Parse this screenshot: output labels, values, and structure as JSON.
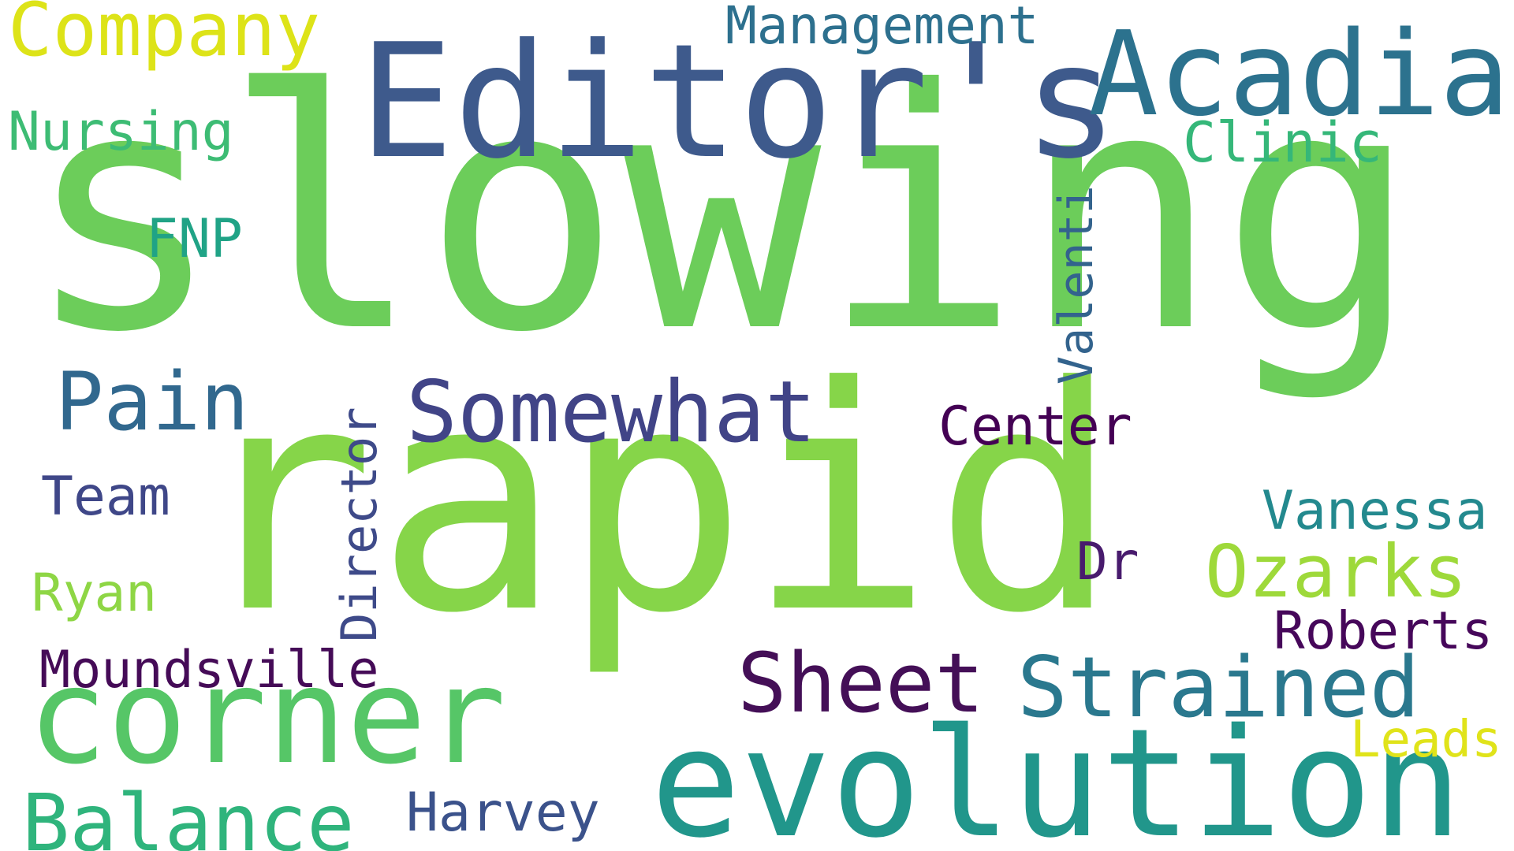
{
  "colors": {
    "background": "#ffffff"
  },
  "words": {
    "slowing": {
      "text": "slowing",
      "color": "#6ccd5a"
    },
    "rapid": {
      "text": "rapid",
      "color": "#86d549"
    },
    "editors": {
      "text": "Editor's",
      "color": "#3e5a8c"
    },
    "evolution": {
      "text": "evolution",
      "color": "#21968b"
    },
    "corner": {
      "text": "corner",
      "color": "#56c667"
    },
    "acadia": {
      "text": "Acadia",
      "color": "#2c728e"
    },
    "somewhat": {
      "text": "Somewhat",
      "color": "#414487"
    },
    "strained": {
      "text": "Strained",
      "color": "#2a788e"
    },
    "pain": {
      "text": "Pain",
      "color": "#31688e"
    },
    "sheet": {
      "text": "Sheet",
      "color": "#440f57"
    },
    "balance": {
      "text": "Balance",
      "color": "#2fb47c"
    },
    "company": {
      "text": "Company",
      "color": "#dde318"
    },
    "ozarks": {
      "text": "Ozarks",
      "color": "#9ed93a"
    },
    "management": {
      "text": "Management",
      "color": "#2d708e"
    },
    "nursing": {
      "text": "Nursing",
      "color": "#3dbc74"
    },
    "clinic": {
      "text": "Clinic",
      "color": "#35b779"
    },
    "center": {
      "text": "Center",
      "color": "#440154"
    },
    "vanessa": {
      "text": "Vanessa",
      "color": "#23898e"
    },
    "roberts": {
      "text": "Roberts",
      "color": "#46075a"
    },
    "moundsville": {
      "text": "Moundsville",
      "color": "#450b57"
    },
    "harvey": {
      "text": "Harvey",
      "color": "#3b528b"
    },
    "leads": {
      "text": "Leads",
      "color": "#e0e31a"
    },
    "team": {
      "text": "Team",
      "color": "#3f4788"
    },
    "ryan": {
      "text": "Ryan",
      "color": "#8ed645"
    },
    "fnp": {
      "text": "FNP",
      "color": "#20a386"
    },
    "dr": {
      "text": "Dr",
      "color": "#481b6d"
    },
    "valenti": {
      "text": "Valenti",
      "color": "#33638d"
    },
    "director": {
      "text": "Director",
      "color": "#3e4a89"
    }
  }
}
